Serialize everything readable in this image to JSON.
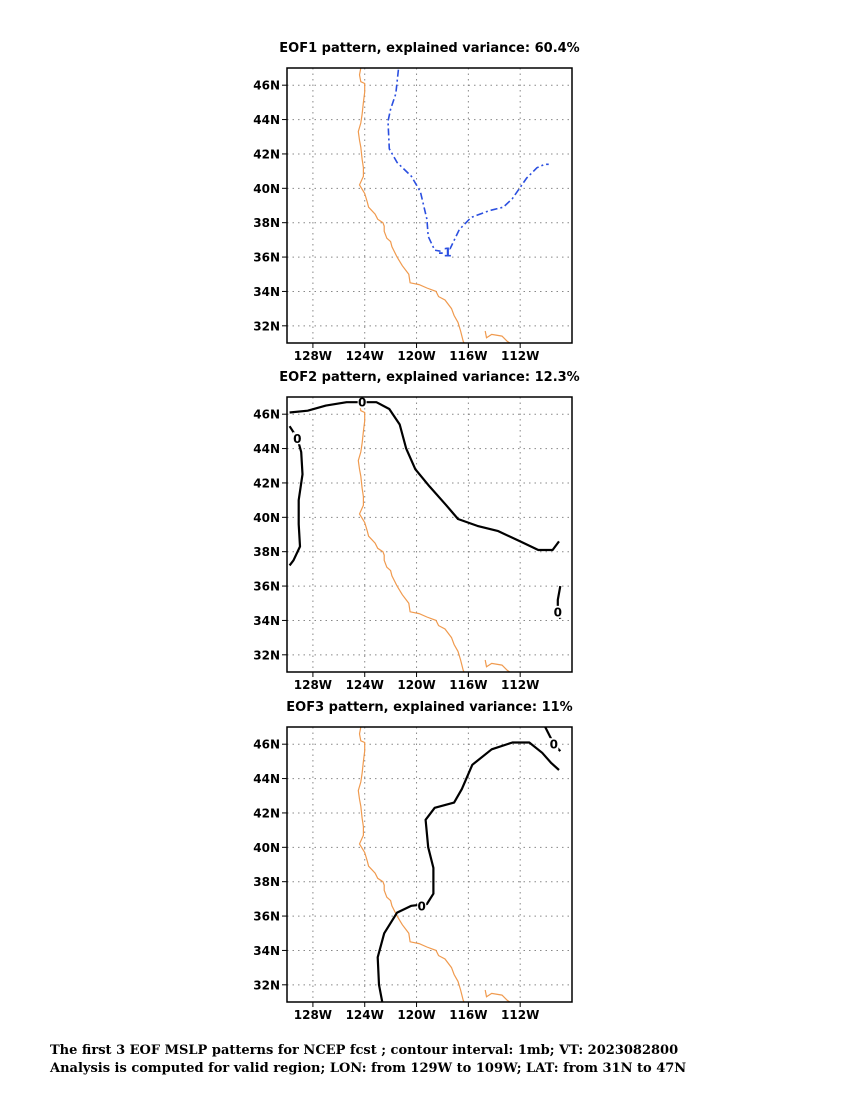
{
  "chart_data": [
    {
      "type": "contour-map",
      "title": "EOF1 pattern, explained variance: 60.4%",
      "lon_range": [
        -130,
        -108
      ],
      "lat_range": [
        31,
        47
      ],
      "x_ticks": [
        "128W",
        "124W",
        "120W",
        "116W",
        "112W"
      ],
      "y_ticks": [
        "46N",
        "44N",
        "42N",
        "40N",
        "38N",
        "36N",
        "34N",
        "32N"
      ],
      "grid": true,
      "contours": [
        {
          "label": "-1",
          "style": "dashed",
          "color": "#2b4fe0",
          "label_at": [
            -117.8,
            36.3
          ],
          "points": [
            [
              -121.4,
              46.9
            ],
            [
              -121.6,
              45.5
            ],
            [
              -122.0,
              44.6
            ],
            [
              -122.2,
              43.9
            ],
            [
              -122.1,
              42.3
            ],
            [
              -121.5,
              41.5
            ],
            [
              -120.4,
              40.7
            ],
            [
              -119.7,
              39.8
            ],
            [
              -119.2,
              38.2
            ],
            [
              -119.1,
              37.2
            ],
            [
              -118.6,
              36.4
            ],
            [
              -117.8,
              36.3
            ],
            [
              -117.4,
              36.5
            ],
            [
              -116.7,
              37.6
            ],
            [
              -115.8,
              38.3
            ],
            [
              -114.4,
              38.7
            ],
            [
              -113.3,
              38.9
            ],
            [
              -112.6,
              39.4
            ],
            [
              -111.5,
              40.6
            ],
            [
              -110.7,
              41.2
            ],
            [
              -110.1,
              41.4
            ],
            [
              -109.8,
              41.4
            ]
          ]
        }
      ]
    },
    {
      "type": "contour-map",
      "title": "EOF2 pattern, explained variance: 12.3%",
      "lon_range": [
        -130,
        -108
      ],
      "lat_range": [
        31,
        47
      ],
      "x_ticks": [
        "128W",
        "124W",
        "120W",
        "116W",
        "112W"
      ],
      "y_ticks": [
        "46N",
        "44N",
        "42N",
        "40N",
        "38N",
        "36N",
        "34N",
        "32N"
      ],
      "grid": true,
      "contours": [
        {
          "label": "0",
          "style": "solid",
          "color": "#000000",
          "label_at": [
            -124.2,
            46.7
          ],
          "points": [
            [
              -129.8,
              46.1
            ],
            [
              -128.4,
              46.2
            ],
            [
              -127.0,
              46.5
            ],
            [
              -125.4,
              46.7
            ],
            [
              -124.2,
              46.7
            ],
            [
              -123.1,
              46.7
            ],
            [
              -122.1,
              46.3
            ],
            [
              -121.3,
              45.4
            ],
            [
              -120.8,
              44.0
            ],
            [
              -120.1,
              42.8
            ],
            [
              -119.0,
              41.8
            ],
            [
              -117.7,
              40.7
            ],
            [
              -116.8,
              39.9
            ],
            [
              -115.3,
              39.5
            ],
            [
              -113.7,
              39.2
            ],
            [
              -112.0,
              38.6
            ],
            [
              -110.6,
              38.1
            ],
            [
              -109.5,
              38.1
            ],
            [
              -109.0,
              38.6
            ]
          ]
        },
        {
          "label": "0",
          "style": "solid",
          "color": "#000000",
          "label_at": [
            -129.2,
            44.6
          ],
          "points": [
            [
              -129.8,
              45.3
            ],
            [
              -129.2,
              44.6
            ],
            [
              -128.9,
              43.8
            ],
            [
              -128.8,
              42.5
            ],
            [
              -129.1,
              41.0
            ],
            [
              -129.1,
              39.6
            ],
            [
              -129.0,
              38.3
            ],
            [
              -129.5,
              37.5
            ],
            [
              -129.8,
              37.2
            ]
          ]
        },
        {
          "label": "0",
          "style": "solid",
          "color": "#000000",
          "label_at": [
            -109.1,
            34.5
          ],
          "points": [
            [
              -108.9,
              36.0
            ],
            [
              -109.1,
              35.2
            ],
            [
              -109.1,
              34.5
            ],
            [
              -108.9,
              34.1
            ]
          ]
        }
      ]
    },
    {
      "type": "contour-map",
      "title": "EOF3 pattern, explained variance: 11%",
      "lon_range": [
        -130,
        -108
      ],
      "lat_range": [
        31,
        47
      ],
      "x_ticks": [
        "128W",
        "124W",
        "120W",
        "116W",
        "112W"
      ],
      "y_ticks": [
        "46N",
        "44N",
        "42N",
        "40N",
        "38N",
        "36N",
        "34N",
        "32N"
      ],
      "grid": true,
      "contours": [
        {
          "label": "0",
          "style": "solid",
          "color": "#000000",
          "label_at": [
            -119.6,
            36.6
          ],
          "points": [
            [
              -122.6,
              30.8
            ],
            [
              -122.9,
              32.0
            ],
            [
              -123.0,
              33.6
            ],
            [
              -122.5,
              35.0
            ],
            [
              -121.5,
              36.2
            ],
            [
              -120.4,
              36.6
            ],
            [
              -119.2,
              36.7
            ],
            [
              -118.7,
              37.3
            ],
            [
              -118.7,
              38.8
            ],
            [
              -119.1,
              40.0
            ],
            [
              -119.3,
              41.6
            ],
            [
              -118.6,
              42.3
            ],
            [
              -117.1,
              42.6
            ],
            [
              -116.5,
              43.4
            ],
            [
              -115.7,
              44.8
            ],
            [
              -114.2,
              45.7
            ],
            [
              -112.6,
              46.1
            ],
            [
              -111.3,
              46.1
            ],
            [
              -110.3,
              45.5
            ],
            [
              -109.6,
              44.9
            ],
            [
              -109.0,
              44.5
            ]
          ]
        },
        {
          "label": "0",
          "style": "solid",
          "color": "#000000",
          "label_at": [
            -109.4,
            46.0
          ],
          "points": [
            [
              -110.2,
              47.2
            ],
            [
              -109.4,
              46.0
            ],
            [
              -108.9,
              45.6
            ]
          ]
        }
      ]
    }
  ],
  "caption": {
    "line1": "The first 3 EOF MSLP patterns for NCEP fcst ; contour interval: 1mb; VT: 2023082800",
    "line2": "Analysis is computed for valid region; LON: from 129W to 109W; LAT: from 31N to 47N"
  },
  "colors": {
    "coastline": "#f09a4e",
    "grid": "#888888",
    "negative_contour": "#2b4fe0",
    "zero_contour": "#000000"
  },
  "coastline": [
    [
      -124.3,
      47.0
    ],
    [
      -124.4,
      46.6
    ],
    [
      -124.3,
      46.2
    ],
    [
      -124.0,
      46.1
    ],
    [
      -124.0,
      45.6
    ],
    [
      -124.1,
      45.0
    ],
    [
      -124.2,
      44.3
    ],
    [
      -124.3,
      43.8
    ],
    [
      -124.5,
      43.3
    ],
    [
      -124.4,
      42.8
    ],
    [
      -124.3,
      42.4
    ],
    [
      -124.2,
      41.7
    ],
    [
      -124.1,
      41.2
    ],
    [
      -124.1,
      40.7
    ],
    [
      -124.4,
      40.2
    ],
    [
      -124.0,
      39.7
    ],
    [
      -123.8,
      39.2
    ],
    [
      -123.7,
      38.9
    ],
    [
      -123.2,
      38.5
    ],
    [
      -123.0,
      38.2
    ],
    [
      -122.6,
      38.0
    ],
    [
      -122.5,
      37.8
    ],
    [
      -122.5,
      37.5
    ],
    [
      -122.3,
      37.1
    ],
    [
      -122.0,
      36.9
    ],
    [
      -121.9,
      36.6
    ],
    [
      -121.5,
      36.0
    ],
    [
      -121.1,
      35.5
    ],
    [
      -120.6,
      35.0
    ],
    [
      -120.5,
      34.5
    ],
    [
      -119.8,
      34.4
    ],
    [
      -119.2,
      34.2
    ],
    [
      -118.5,
      34.0
    ],
    [
      -118.3,
      33.7
    ],
    [
      -117.8,
      33.5
    ],
    [
      -117.3,
      33.0
    ],
    [
      -117.1,
      32.6
    ],
    [
      -116.8,
      32.2
    ],
    [
      -116.6,
      31.7
    ],
    [
      -116.4,
      31.1
    ],
    [
      -116.2,
      30.8
    ]
  ],
  "gulf_coast": [
    [
      -114.7,
      31.7
    ],
    [
      -114.6,
      31.3
    ],
    [
      -114.2,
      31.5
    ],
    [
      -113.4,
      31.4
    ],
    [
      -113.0,
      31.1
    ],
    [
      -112.6,
      30.9
    ]
  ]
}
